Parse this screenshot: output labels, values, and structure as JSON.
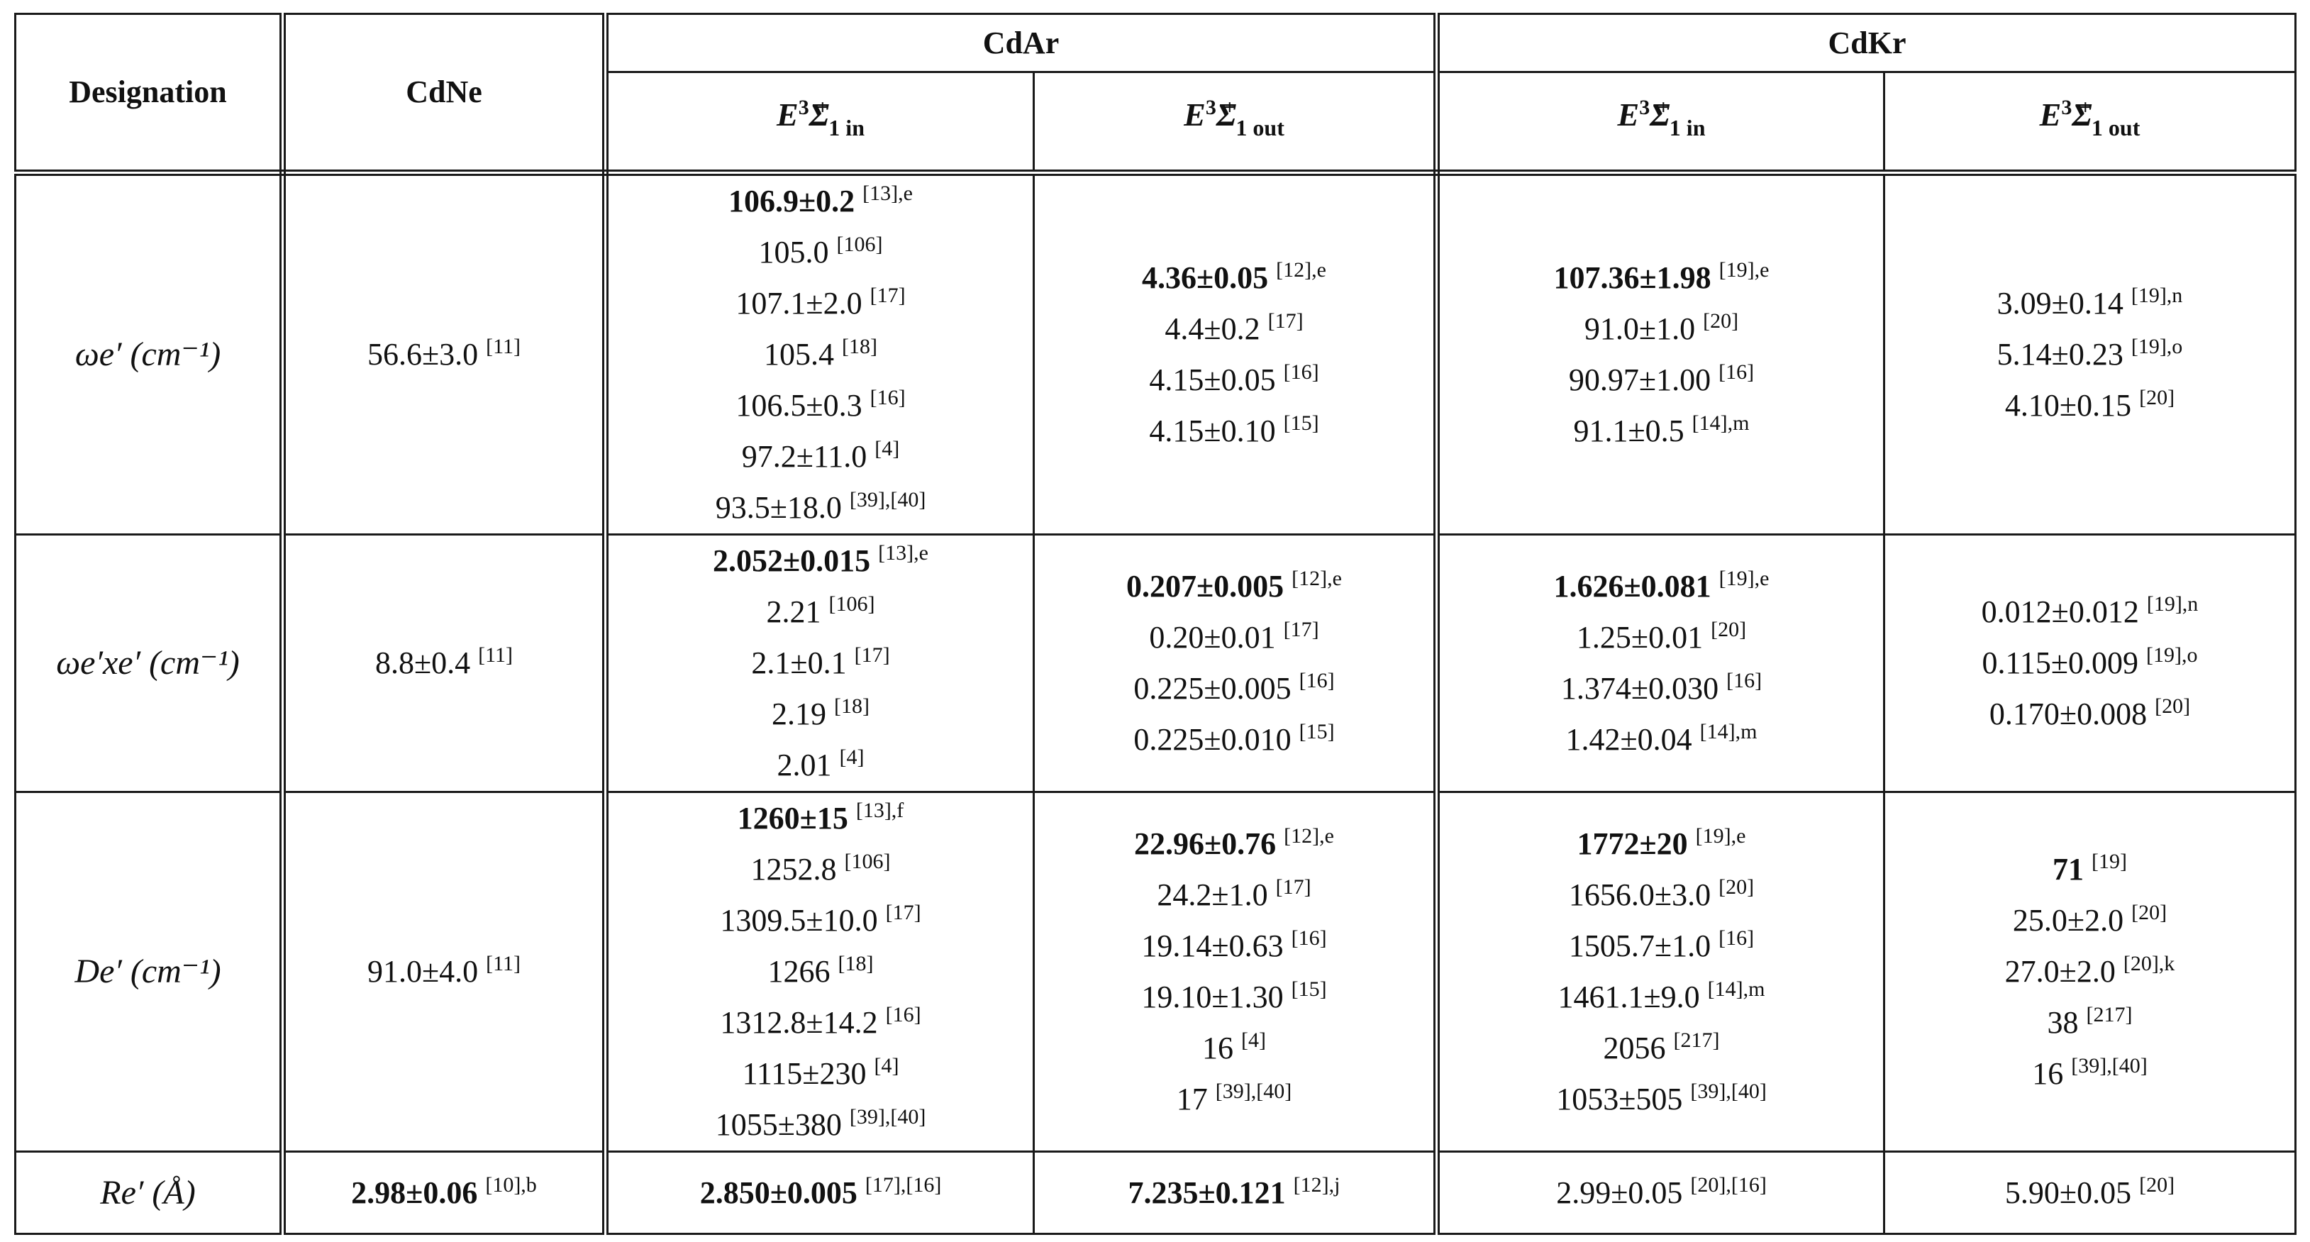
{
  "header": {
    "designation": "Designation",
    "cdne": "CdNe",
    "cdar": "CdAr",
    "cdkr": "CdKr",
    "state_sym": "E",
    "state_sup": "3",
    "state_sigma": "Σ",
    "state_plus": "+",
    "sub_in": "1 in",
    "sub_out": "1 out"
  },
  "rows": [
    {
      "label": "ωe′ (cm⁻¹)",
      "cdne": [
        {
          "v": "56.6±3.0",
          "r": "[11]",
          "b": false
        }
      ],
      "cdar_in": [
        {
          "v": "106.9±0.2",
          "r": "[13],e",
          "b": true
        },
        {
          "v": "105.0",
          "r": "[106]",
          "b": false
        },
        {
          "v": "107.1±2.0",
          "r": "[17]",
          "b": false
        },
        {
          "v": "105.4",
          "r": "[18]",
          "b": false
        },
        {
          "v": "106.5±0.3",
          "r": "[16]",
          "b": false
        },
        {
          "v": "97.2±11.0",
          "r": "[4]",
          "b": false
        },
        {
          "v": "93.5±18.0",
          "r": "[39],[40]",
          "b": false
        }
      ],
      "cdar_out": [
        {
          "v": "4.36±0.05",
          "r": "[12],e",
          "b": true
        },
        {
          "v": "4.4±0.2",
          "r": "[17]",
          "b": false
        },
        {
          "v": "4.15±0.05",
          "r": "[16]",
          "b": false
        },
        {
          "v": "4.15±0.10",
          "r": "[15]",
          "b": false
        }
      ],
      "cdkr_in": [
        {
          "v": "107.36±1.98",
          "r": "[19],e",
          "b": true
        },
        {
          "v": "91.0±1.0",
          "r": "[20]",
          "b": false
        },
        {
          "v": "90.97±1.00",
          "r": "[16]",
          "b": false
        },
        {
          "v": "91.1±0.5",
          "r": "[14],m",
          "b": false
        }
      ],
      "cdkr_out": [
        {
          "v": "3.09±0.14",
          "r": "[19],n",
          "b": false
        },
        {
          "v": "5.14±0.23",
          "r": "[19],o",
          "b": false
        },
        {
          "v": "4.10±0.15",
          "r": "[20]",
          "b": false
        }
      ]
    },
    {
      "label": "ωe′xe′ (cm⁻¹)",
      "cdne": [
        {
          "v": "8.8±0.4",
          "r": "[11]",
          "b": false
        }
      ],
      "cdar_in": [
        {
          "v": "2.052±0.015",
          "r": "[13],e",
          "b": true
        },
        {
          "v": "2.21",
          "r": "[106]",
          "b": false
        },
        {
          "v": "2.1±0.1",
          "r": "[17]",
          "b": false
        },
        {
          "v": "2.19",
          "r": "[18]",
          "b": false
        },
        {
          "v": "2.01",
          "r": "[4]",
          "b": false
        }
      ],
      "cdar_out": [
        {
          "v": "0.207±0.005",
          "r": "[12],e",
          "b": true
        },
        {
          "v": "0.20±0.01",
          "r": "[17]",
          "b": false
        },
        {
          "v": "0.225±0.005",
          "r": "[16]",
          "b": false
        },
        {
          "v": "0.225±0.010",
          "r": "[15]",
          "b": false
        }
      ],
      "cdkr_in": [
        {
          "v": "1.626±0.081",
          "r": "[19],e",
          "b": true
        },
        {
          "v": "1.25±0.01",
          "r": "[20]",
          "b": false
        },
        {
          "v": "1.374±0.030",
          "r": "[16]",
          "b": false
        },
        {
          "v": "1.42±0.04",
          "r": "[14],m",
          "b": false
        }
      ],
      "cdkr_out": [
        {
          "v": "0.012±0.012",
          "r": "[19],n",
          "b": false
        },
        {
          "v": "0.115±0.009",
          "r": "[19],o",
          "b": false
        },
        {
          "v": "0.170±0.008",
          "r": "[20]",
          "b": false
        }
      ]
    },
    {
      "label": "De′ (cm⁻¹)",
      "cdne": [
        {
          "v": "91.0±4.0",
          "r": "[11]",
          "b": false
        }
      ],
      "cdar_in": [
        {
          "v": "1260±15",
          "r": "[13],f",
          "b": true
        },
        {
          "v": "1252.8",
          "r": "[106]",
          "b": false
        },
        {
          "v": "1309.5±10.0",
          "r": "[17]",
          "b": false
        },
        {
          "v": "1266",
          "r": "[18]",
          "b": false
        },
        {
          "v": "1312.8±14.2",
          "r": "[16]",
          "b": false
        },
        {
          "v": "1115±230",
          "r": "[4]",
          "b": false
        },
        {
          "v": "1055±380",
          "r": "[39],[40]",
          "b": false
        }
      ],
      "cdar_out": [
        {
          "v": "22.96±0.76",
          "r": "[12],e",
          "b": true
        },
        {
          "v": "24.2±1.0",
          "r": "[17]",
          "b": false
        },
        {
          "v": "19.14±0.63",
          "r": "[16]",
          "b": false
        },
        {
          "v": "19.10±1.30",
          "r": "[15]",
          "b": false
        },
        {
          "v": "16",
          "r": "[4]",
          "b": false
        },
        {
          "v": "17",
          "r": "[39],[40]",
          "b": false
        }
      ],
      "cdkr_in": [
        {
          "v": "1772±20",
          "r": "[19],e",
          "b": true
        },
        {
          "v": "1656.0±3.0",
          "r": "[20]",
          "b": false
        },
        {
          "v": "1505.7±1.0",
          "r": "[16]",
          "b": false
        },
        {
          "v": "1461.1±9.0",
          "r": "[14],m",
          "b": false
        },
        {
          "v": "2056",
          "r": "[217]",
          "b": false
        },
        {
          "v": "1053±505",
          "r": "[39],[40]",
          "b": false
        }
      ],
      "cdkr_out": [
        {
          "v": "71",
          "r": "[19]",
          "b": true
        },
        {
          "v": "25.0±2.0",
          "r": "[20]",
          "b": false
        },
        {
          "v": "27.0±2.0",
          "r": "[20],k",
          "b": false
        },
        {
          "v": "38",
          "r": "[217]",
          "b": false
        },
        {
          "v": "16",
          "r": "[39],[40]",
          "b": false
        }
      ]
    },
    {
      "label": "Re′ (Å)",
      "cdne": [
        {
          "v": "2.98±0.06",
          "r": "[10],b",
          "b": true
        }
      ],
      "cdar_in": [
        {
          "v": "2.850±0.005",
          "r": "[17],[16]",
          "b": true
        }
      ],
      "cdar_out": [
        {
          "v": "7.235±0.121",
          "r": "[12],j",
          "b": true
        }
      ],
      "cdkr_in": [
        {
          "v": "2.99±0.05",
          "r": "[20],[16]",
          "b": false
        }
      ],
      "cdkr_out": [
        {
          "v": "5.90±0.05",
          "r": "[20]",
          "b": false
        }
      ]
    }
  ]
}
